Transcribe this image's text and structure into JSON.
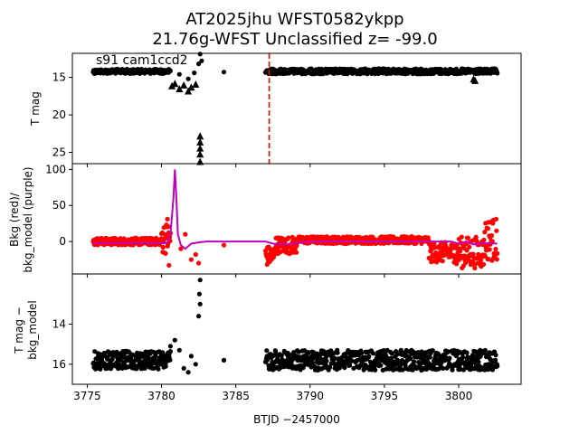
{
  "title": {
    "line1": "AT2025jhu  WFST0582ykpp",
    "line2": "21.76g-WFST Unclassified z= -99.0"
  },
  "chart_data": [
    {
      "type": "scatter",
      "panel": "top",
      "ylabel": "T mag",
      "annotation": "s91 cam1ccd2",
      "xlim": [
        3774.0,
        3804.2
      ],
      "ylim": [
        26.5,
        11.8
      ],
      "y_inverted": true,
      "yticks": [
        15,
        20,
        25
      ],
      "marker_color": "#000000",
      "vline": {
        "x": 3787.25,
        "color": "#ff0000",
        "style": "dashed"
      },
      "series": [
        {
          "name": "detections",
          "marker": "circle",
          "segments": [
            {
              "x_start": 3775.4,
              "x_end": 3780.6,
              "y": 14.2,
              "spread": 0.3
            },
            {
              "x_start": 3787.0,
              "x_end": 3802.6,
              "y": 14.2,
              "spread": 0.35
            }
          ],
          "extra_points": [
            [
              3781.2,
              14.6
            ],
            [
              3781.8,
              15.2
            ],
            [
              3782.2,
              14.4
            ],
            [
              3782.5,
              13.2
            ],
            [
              3782.6,
              11.9
            ],
            [
              3782.7,
              12.8
            ],
            [
              3784.2,
              14.3
            ]
          ]
        },
        {
          "name": "upper_limits",
          "marker": "triangle",
          "points": [
            [
              3780.7,
              16.1
            ],
            [
              3780.9,
              15.8
            ],
            [
              3781.2,
              16.5
            ],
            [
              3781.5,
              16.0
            ],
            [
              3781.8,
              16.8
            ],
            [
              3782.0,
              16.3
            ],
            [
              3782.3,
              15.9
            ],
            [
              3782.6,
              22.8
            ],
            [
              3782.6,
              23.6
            ],
            [
              3782.6,
              24.4
            ],
            [
              3782.6,
              25.2
            ],
            [
              3782.6,
              26.2
            ],
            [
              3801.0,
              15.2
            ],
            [
              3801.1,
              15.4
            ]
          ]
        }
      ]
    },
    {
      "type": "line+scatter",
      "panel": "middle",
      "ylabel_line1": "Bkg (red)/",
      "ylabel_line2": "bkg_model (purple)",
      "xlim": [
        3774.0,
        3804.2
      ],
      "ylim": [
        -45,
        108
      ],
      "yticks": [
        0,
        50,
        100
      ],
      "series": [
        {
          "name": "bkg",
          "color": "#ff0000",
          "marker": "circle",
          "segments": [
            {
              "x_start": 3775.4,
              "x_end": 3780.0,
              "y": 0,
              "spread": 5
            },
            {
              "x_start": 3780.0,
              "x_end": 3780.6,
              "y": 5,
              "spread": 22
            },
            {
              "x_start": 3787.0,
              "x_end": 3787.6,
              "y": -20,
              "spread": 14
            },
            {
              "x_start": 3787.6,
              "x_end": 3789.1,
              "y": -5,
              "spread": 12
            },
            {
              "x_start": 3789.1,
              "x_end": 3798.0,
              "y": 2,
              "spread": 5
            },
            {
              "x_start": 3798.0,
              "x_end": 3799.8,
              "y": -15,
              "spread": 14
            },
            {
              "x_start": 3799.8,
              "x_end": 3801.7,
              "y": -15,
              "spread": 22
            },
            {
              "x_start": 3801.7,
              "x_end": 3802.6,
              "y": 3,
              "spread": 30
            }
          ],
          "extra_points": [
            [
              3780.4,
              31
            ],
            [
              3780.5,
              -33
            ],
            [
              3781.3,
              -10
            ],
            [
              3781.6,
              10
            ],
            [
              3782.0,
              -25
            ],
            [
              3782.3,
              -18
            ],
            [
              3782.5,
              -30
            ],
            [
              3784.2,
              -5
            ]
          ]
        },
        {
          "name": "bkg_model",
          "color": "#bf00bf",
          "x": [
            3775.4,
            3780.4,
            3780.6,
            3780.8,
            3780.9,
            3781.0,
            3781.1,
            3781.3,
            3781.6,
            3782.0,
            3782.6,
            3783.0,
            3787.0,
            3787.5,
            3788.5,
            3789.1,
            3790.0,
            3798.0,
            3799.5,
            3800.0,
            3800.5,
            3801.0,
            3802.0,
            3802.6
          ],
          "y": [
            -2,
            -2,
            10,
            60,
            100,
            60,
            10,
            -5,
            -10,
            -3,
            -1,
            0,
            0,
            -3,
            -4,
            -2,
            0,
            0,
            0,
            -3,
            0,
            -4,
            -2,
            -3
          ]
        }
      ]
    },
    {
      "type": "scatter",
      "panel": "bottom",
      "ylabel_line1": "T mag −",
      "ylabel_line2": "bkg_model",
      "xlabel": "BTJD −2457000",
      "xlim": [
        3774.0,
        3804.2
      ],
      "xticks": [
        3775,
        3780,
        3785,
        3790,
        3795,
        3800
      ],
      "ylim": [
        17.0,
        11.5
      ],
      "y_inverted": true,
      "yticks": [
        14,
        16
      ],
      "marker_color": "#000000",
      "series": [
        {
          "name": "diff",
          "marker": "circle",
          "segments": [
            {
              "x_start": 3775.4,
              "x_end": 3780.6,
              "y": 15.8,
              "spread": 0.45
            },
            {
              "x_start": 3787.0,
              "x_end": 3802.6,
              "y": 15.8,
              "spread": 0.5
            }
          ],
          "extra_points": [
            [
              3780.6,
              15.1
            ],
            [
              3780.9,
              14.8
            ],
            [
              3781.2,
              15.3
            ],
            [
              3781.5,
              16.2
            ],
            [
              3781.8,
              16.4
            ],
            [
              3782.0,
              15.6
            ],
            [
              3782.3,
              16.0
            ],
            [
              3782.5,
              13.6
            ],
            [
              3782.55,
              12.5
            ],
            [
              3782.6,
              13.0
            ],
            [
              3782.6,
              11.8
            ],
            [
              3784.2,
              15.8
            ]
          ]
        }
      ]
    }
  ]
}
